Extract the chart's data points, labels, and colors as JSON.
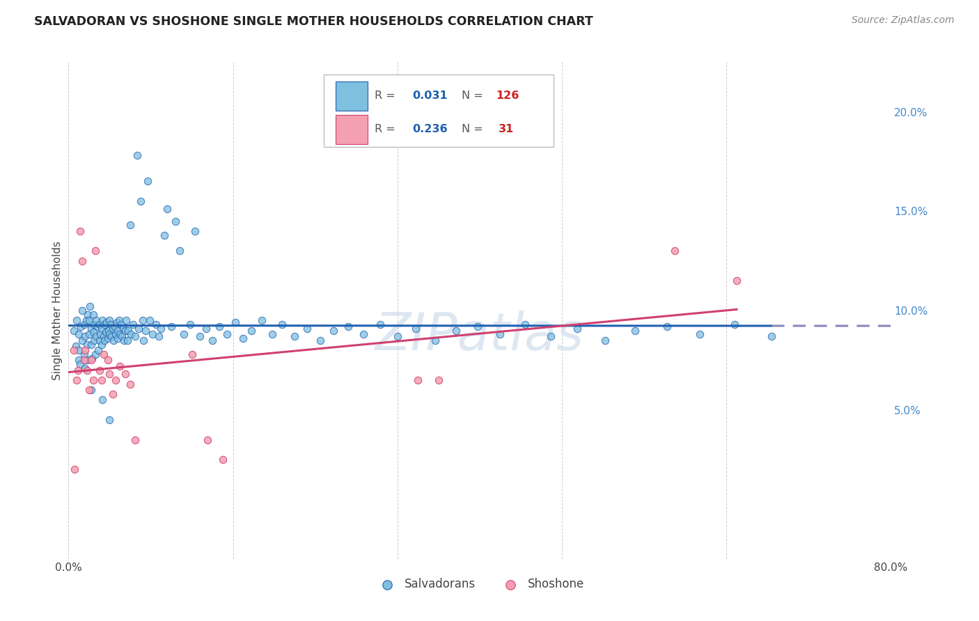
{
  "title": "SALVADORAN VS SHOSHONE SINGLE MOTHER HOUSEHOLDS CORRELATION CHART",
  "source": "Source: ZipAtlas.com",
  "ylabel": "Single Mother Households",
  "xlim": [
    0.0,
    0.8
  ],
  "ylim": [
    -0.025,
    0.225
  ],
  "salvadoran_R": 0.031,
  "salvadoran_N": 126,
  "shoshone_R": 0.236,
  "shoshone_N": 31,
  "salvadoran_color": "#7fbfdf",
  "shoshone_color": "#f4a0b0",
  "salvadoran_line_color": "#2060b0",
  "shoshone_line_color": "#d04070",
  "trend_dash_color": "#8888bb",
  "watermark": "ZIPatlas",
  "salvadoran_x": [
    0.005,
    0.007,
    0.008,
    0.01,
    0.01,
    0.01,
    0.011,
    0.012,
    0.013,
    0.013,
    0.015,
    0.015,
    0.016,
    0.016,
    0.017,
    0.018,
    0.018,
    0.019,
    0.02,
    0.02,
    0.021,
    0.022,
    0.022,
    0.023,
    0.024,
    0.024,
    0.025,
    0.025,
    0.026,
    0.027,
    0.027,
    0.028,
    0.029,
    0.03,
    0.03,
    0.031,
    0.032,
    0.032,
    0.033,
    0.034,
    0.035,
    0.035,
    0.036,
    0.037,
    0.038,
    0.039,
    0.04,
    0.04,
    0.041,
    0.042,
    0.043,
    0.044,
    0.045,
    0.046,
    0.047,
    0.048,
    0.048,
    0.049,
    0.05,
    0.051,
    0.052,
    0.053,
    0.054,
    0.055,
    0.056,
    0.057,
    0.058,
    0.06,
    0.061,
    0.063,
    0.065,
    0.067,
    0.068,
    0.07,
    0.072,
    0.073,
    0.075,
    0.077,
    0.079,
    0.082,
    0.085,
    0.088,
    0.09,
    0.093,
    0.096,
    0.1,
    0.104,
    0.108,
    0.112,
    0.118,
    0.123,
    0.128,
    0.134,
    0.14,
    0.147,
    0.154,
    0.162,
    0.17,
    0.178,
    0.188,
    0.198,
    0.208,
    0.22,
    0.232,
    0.245,
    0.258,
    0.272,
    0.287,
    0.303,
    0.32,
    0.338,
    0.357,
    0.377,
    0.398,
    0.42,
    0.444,
    0.469,
    0.495,
    0.522,
    0.551,
    0.582,
    0.614,
    0.648,
    0.684,
    0.022,
    0.033,
    0.04
  ],
  "salvadoran_y": [
    0.09,
    0.082,
    0.095,
    0.08,
    0.075,
    0.088,
    0.073,
    0.092,
    0.085,
    0.1,
    0.078,
    0.093,
    0.087,
    0.071,
    0.095,
    0.083,
    0.075,
    0.098,
    0.088,
    0.095,
    0.102,
    0.091,
    0.083,
    0.076,
    0.098,
    0.089,
    0.093,
    0.085,
    0.078,
    0.095,
    0.087,
    0.092,
    0.08,
    0.085,
    0.093,
    0.088,
    0.091,
    0.083,
    0.095,
    0.087,
    0.093,
    0.085,
    0.089,
    0.094,
    0.086,
    0.09,
    0.095,
    0.088,
    0.093,
    0.087,
    0.091,
    0.085,
    0.092,
    0.088,
    0.094,
    0.086,
    0.09,
    0.095,
    0.088,
    0.093,
    0.087,
    0.091,
    0.085,
    0.09,
    0.095,
    0.085,
    0.09,
    0.143,
    0.088,
    0.093,
    0.087,
    0.178,
    0.091,
    0.155,
    0.095,
    0.085,
    0.09,
    0.165,
    0.095,
    0.088,
    0.093,
    0.087,
    0.091,
    0.138,
    0.151,
    0.092,
    0.145,
    0.13,
    0.088,
    0.093,
    0.14,
    0.087,
    0.091,
    0.085,
    0.092,
    0.088,
    0.094,
    0.086,
    0.09,
    0.095,
    0.088,
    0.093,
    0.087,
    0.091,
    0.085,
    0.09,
    0.092,
    0.088,
    0.093,
    0.087,
    0.091,
    0.085,
    0.09,
    0.092,
    0.088,
    0.093,
    0.087,
    0.091,
    0.085,
    0.09,
    0.092,
    0.088,
    0.093,
    0.087,
    0.06,
    0.055,
    0.045
  ],
  "shoshone_x": [
    0.005,
    0.006,
    0.008,
    0.009,
    0.011,
    0.013,
    0.015,
    0.016,
    0.018,
    0.02,
    0.022,
    0.024,
    0.026,
    0.03,
    0.032,
    0.034,
    0.038,
    0.04,
    0.043,
    0.046,
    0.05,
    0.055,
    0.06,
    0.065,
    0.12,
    0.135,
    0.15,
    0.34,
    0.36,
    0.59,
    0.65
  ],
  "shoshone_y": [
    0.08,
    0.02,
    0.065,
    0.07,
    0.14,
    0.125,
    0.075,
    0.08,
    0.07,
    0.06,
    0.075,
    0.065,
    0.13,
    0.07,
    0.065,
    0.078,
    0.075,
    0.068,
    0.058,
    0.065,
    0.072,
    0.068,
    0.063,
    0.035,
    0.078,
    0.035,
    0.025,
    0.065,
    0.065,
    0.13,
    0.115
  ]
}
